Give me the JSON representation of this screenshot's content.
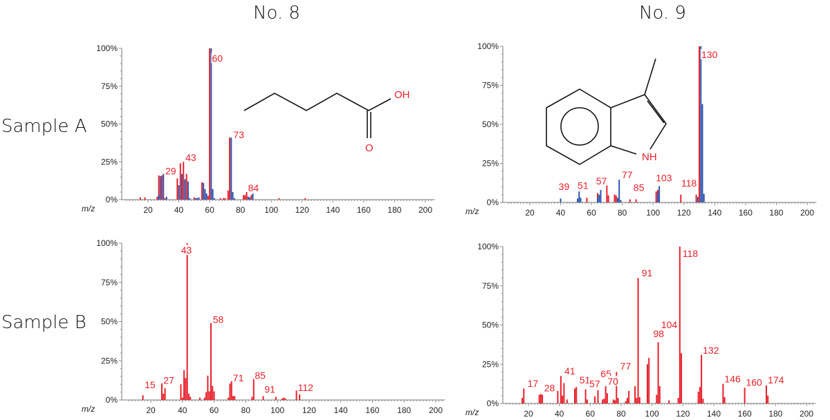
{
  "columns": [
    "No. 8",
    "No. 9"
  ],
  "rows": [
    "Sample A",
    "Sample B"
  ],
  "colors": {
    "red": "#e8202a",
    "blue": "#2a55b0"
  },
  "structures": {
    "no8": {
      "labels": [
        "OH",
        "O"
      ]
    },
    "no9": {
      "labels": [
        "NH"
      ]
    }
  },
  "chart_data": [
    {
      "type": "bar",
      "column": "No. 8",
      "row": "Sample A",
      "xlabel": "m/z",
      "ylabel": "",
      "xlim": [
        3,
        206
      ],
      "ylim": [
        0,
        100
      ],
      "yticks": [
        "0%",
        "25%",
        "50%",
        "75%",
        "100%"
      ],
      "xticks": [
        20,
        40,
        60,
        80,
        100,
        120,
        140,
        160,
        180,
        200
      ],
      "grid": false,
      "series": [
        {
          "color": "#e8202a",
          "points": [
            [
              15,
              1.5
            ],
            [
              18,
              1.5
            ],
            [
              26,
              2
            ],
            [
              27,
              16
            ],
            [
              29,
              16
            ],
            [
              31,
              1
            ],
            [
              39,
              14
            ],
            [
              41,
              24
            ],
            [
              43,
              25
            ],
            [
              45,
              17
            ],
            [
              50,
              1.5
            ],
            [
              55,
              11.5
            ],
            [
              59,
              2.5
            ],
            [
              60,
              100
            ],
            [
              67,
              1
            ],
            [
              69,
              1
            ],
            [
              70,
              1
            ],
            [
              72,
              6
            ],
            [
              73,
              41
            ],
            [
              82,
              3
            ],
            [
              83,
              3
            ],
            [
              84,
              5
            ],
            [
              87,
              3
            ],
            [
              105,
              1
            ],
            [
              122,
              1
            ]
          ]
        },
        {
          "color": "#2a55b0",
          "points": [
            [
              27,
              3
            ],
            [
              28,
              15.5
            ],
            [
              30,
              17
            ],
            [
              32,
              2
            ],
            [
              40,
              9.5
            ],
            [
              42,
              17
            ],
            [
              44,
              13.5
            ],
            [
              46,
              12
            ],
            [
              47,
              1
            ],
            [
              51,
              1
            ],
            [
              52,
              1
            ],
            [
              53,
              1.5
            ],
            [
              56,
              11
            ],
            [
              57,
              7
            ],
            [
              58,
              4
            ],
            [
              61,
              100
            ],
            [
              62,
              7
            ],
            [
              63,
              1
            ],
            [
              74,
              41
            ],
            [
              75,
              5
            ],
            [
              76,
              1
            ],
            [
              85,
              2
            ],
            [
              86,
              1.5
            ],
            [
              88,
              4
            ]
          ]
        }
      ],
      "annotations": [
        {
          "text": "29",
          "x": 31.2,
          "y": 16.6
        },
        {
          "text": "43",
          "x": 44.3,
          "y": 25.6
        },
        {
          "text": "60",
          "x": 61.5,
          "y": 91
        },
        {
          "text": "73",
          "x": 75.4,
          "y": 40.6
        },
        {
          "text": "84",
          "x": 84.9,
          "y": 5.5
        }
      ]
    },
    {
      "type": "bar",
      "column": "No. 9",
      "row": "Sample A",
      "xlabel": "m/z",
      "ylabel": "",
      "xlim": [
        3,
        206
      ],
      "ylim": [
        0,
        100
      ],
      "yticks": [
        "0%",
        "25%",
        "50%",
        "75%",
        "100%"
      ],
      "xticks": [
        20,
        40,
        60,
        80,
        100,
        120,
        140,
        160,
        180,
        200
      ],
      "grid": false,
      "series": [
        {
          "color": "#e8202a",
          "points": [
            [
              57,
              3
            ],
            [
              64,
              6
            ],
            [
              70,
              12
            ],
            [
              71,
              4.5
            ],
            [
              75,
              5
            ],
            [
              76,
              4.5
            ],
            [
              85,
              2
            ],
            [
              89,
              2
            ],
            [
              102,
              7
            ],
            [
              103,
              8
            ],
            [
              118,
              5
            ],
            [
              128,
              5
            ],
            [
              130,
              100
            ]
          ]
        },
        {
          "color": "#2a55b0",
          "points": [
            [
              40,
              2.5
            ],
            [
              51,
              2.5
            ],
            [
              52,
              7
            ],
            [
              53,
              3
            ],
            [
              64,
              3
            ],
            [
              65,
              5
            ],
            [
              66,
              8
            ],
            [
              77,
              3
            ],
            [
              78,
              14.5
            ],
            [
              79,
              1.5
            ],
            [
              103,
              6
            ],
            [
              104,
              10.5
            ],
            [
              129,
              3.5
            ],
            [
              131,
              100
            ],
            [
              132,
              63
            ],
            [
              133,
              5.5
            ]
          ]
        }
      ],
      "annotations": [
        {
          "text": "39",
          "x": 38.7,
          "y": 8
        },
        {
          "text": "51",
          "x": 51,
          "y": 8.7
        },
        {
          "text": "57",
          "x": 63,
          "y": 11.6
        },
        {
          "text": "77",
          "x": 79.7,
          "y": 15.5
        },
        {
          "text": "85",
          "x": 87.3,
          "y": 7.2
        },
        {
          "text": "103",
          "x": 101.8,
          "y": 13.4
        },
        {
          "text": "118",
          "x": 118.3,
          "y": 10.2
        },
        {
          "text": "130",
          "x": 131.3,
          "y": 92.5
        }
      ]
    },
    {
      "type": "bar",
      "column": "No. 8",
      "row": "Sample B",
      "xlabel": "m/z",
      "ylabel": "",
      "xlim": [
        3,
        206
      ],
      "ylim": [
        0,
        100
      ],
      "yticks": [
        "0%",
        "25%",
        "50%",
        "75%",
        "100%"
      ],
      "xticks": [
        20,
        40,
        60,
        80,
        100,
        120,
        140,
        160,
        180,
        200
      ],
      "grid": false,
      "series": [
        {
          "color": "#e8202a",
          "points": [
            [
              15,
              3
            ],
            [
              27,
              10.5
            ],
            [
              28,
              4
            ],
            [
              29,
              7.5
            ],
            [
              39,
              10
            ],
            [
              40,
              1.5
            ],
            [
              41,
              19
            ],
            [
              42,
              14
            ],
            [
              43,
              100
            ],
            [
              44,
              4
            ],
            [
              45,
              2
            ],
            [
              51,
              1.5
            ],
            [
              54,
              1.5
            ],
            [
              55,
              5
            ],
            [
              56,
              15.5
            ],
            [
              57,
              5.5
            ],
            [
              58,
              49
            ],
            [
              59,
              9
            ],
            [
              60,
              5.5
            ],
            [
              69,
              1.5
            ],
            [
              70,
              10.5
            ],
            [
              71,
              12
            ],
            [
              72,
              2.5
            ],
            [
              73,
              2.5
            ],
            [
              84,
              2
            ],
            [
              85,
              13.5
            ],
            [
              91,
              2.5
            ],
            [
              99,
              2
            ],
            [
              103,
              1
            ],
            [
              104,
              1.5
            ],
            [
              105,
              1
            ],
            [
              112,
              6
            ],
            [
              114,
              3.5
            ]
          ]
        }
      ],
      "annotations": [
        {
          "text": "15",
          "x": 16.1,
          "y": 7.5
        },
        {
          "text": "27",
          "x": 28,
          "y": 10.3
        },
        {
          "text": "43",
          "x": 39.1,
          "y": 93.3
        },
        {
          "text": "58",
          "x": 59.2,
          "y": 49.2
        },
        {
          "text": "71",
          "x": 71.9,
          "y": 12
        },
        {
          "text": "85",
          "x": 85.7,
          "y": 13.5
        },
        {
          "text": "91",
          "x": 91.8,
          "y": 4.7
        },
        {
          "text": "112",
          "x": 112.9,
          "y": 5.7
        }
      ]
    },
    {
      "type": "bar",
      "column": "No. 9",
      "row": "Sample B",
      "xlabel": "m/z",
      "ylabel": "",
      "xlim": [
        3,
        206
      ],
      "ylim": [
        0,
        100
      ],
      "yticks": [
        "0%",
        "25%",
        "50%",
        "75%",
        "100%"
      ],
      "xticks": [
        20,
        40,
        60,
        80,
        100,
        120,
        140,
        160,
        180,
        200
      ],
      "grid": false,
      "series": [
        {
          "color": "#e8202a",
          "points": [
            [
              16,
              3.5
            ],
            [
              17,
              9.5
            ],
            [
              27,
              5.5
            ],
            [
              28,
              6
            ],
            [
              29,
              5.5
            ],
            [
              39,
              8
            ],
            [
              41,
              17.5
            ],
            [
              42,
              5
            ],
            [
              43,
              13
            ],
            [
              45,
              2.5
            ],
            [
              50,
              9.5
            ],
            [
              51,
              10.5
            ],
            [
              57,
              9
            ],
            [
              58,
              2.5
            ],
            [
              63,
              4.5
            ],
            [
              65,
              8.5
            ],
            [
              68,
              2.5
            ],
            [
              69,
              3
            ],
            [
              70,
              11
            ],
            [
              71,
              6.5
            ],
            [
              75,
              2.5
            ],
            [
              76,
              2
            ],
            [
              77,
              20
            ],
            [
              78,
              3.5
            ],
            [
              83,
              1.5
            ],
            [
              84,
              3.5
            ],
            [
              85,
              8
            ],
            [
              89,
              11
            ],
            [
              90,
              3.5
            ],
            [
              91,
              80
            ],
            [
              92,
              4
            ],
            [
              97,
              25
            ],
            [
              98,
              29
            ],
            [
              103,
              5.5
            ],
            [
              104,
              39
            ],
            [
              105,
              11
            ],
            [
              111,
              2
            ],
            [
              117,
              3.5
            ],
            [
              118,
              100
            ],
            [
              119,
              32
            ],
            [
              130,
              7.5
            ],
            [
              131,
              10.5
            ],
            [
              132,
              31
            ],
            [
              133,
              3
            ],
            [
              146,
              12.5
            ],
            [
              147,
              4
            ],
            [
              160,
              10
            ],
            [
              174,
              11.5
            ],
            [
              175,
              5
            ]
          ]
        }
      ],
      "annotations": [
        {
          "text": "17",
          "x": 19.4,
          "y": 10.6
        },
        {
          "text": "28",
          "x": 30.2,
          "y": 7.6
        },
        {
          "text": "41",
          "x": 43.3,
          "y": 18.6
        },
        {
          "text": "51",
          "x": 53,
          "y": 12.8
        },
        {
          "text": "57",
          "x": 59.4,
          "y": 10.3
        },
        {
          "text": "65",
          "x": 66.7,
          "y": 16.7
        },
        {
          "text": "70",
          "x": 71.2,
          "y": 12
        },
        {
          "text": "77",
          "x": 79.4,
          "y": 21.6
        },
        {
          "text": "91",
          "x": 93.3,
          "y": 81
        },
        {
          "text": "98",
          "x": 100.8,
          "y": 42.2
        },
        {
          "text": "104",
          "x": 105.9,
          "y": 48
        },
        {
          "text": "118",
          "x": 119.8,
          "y": 93.5
        },
        {
          "text": "132",
          "x": 132.9,
          "y": 31.8
        },
        {
          "text": "146",
          "x": 146.9,
          "y": 13.5
        },
        {
          "text": "160",
          "x": 160.8,
          "y": 11.3
        },
        {
          "text": "174",
          "x": 175,
          "y": 12.8
        }
      ]
    }
  ]
}
